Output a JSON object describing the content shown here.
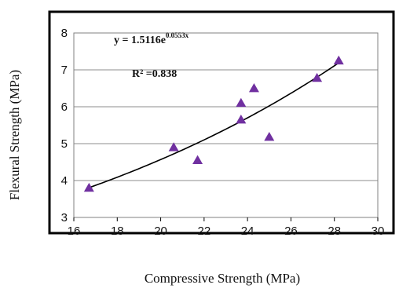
{
  "chart_data": {
    "type": "scatter",
    "xlabel": "Compressive Strength (MPa)",
    "ylabel": "Flexural Strength (MPa)",
    "xlim": [
      16,
      30
    ],
    "ylim": [
      3,
      8
    ],
    "xticks": [
      16,
      18,
      20,
      22,
      24,
      26,
      28,
      30
    ],
    "yticks": [
      3,
      4,
      5,
      6,
      7,
      8
    ],
    "grid": "horizontal",
    "series": [
      {
        "marker": "triangle",
        "color": "#7030A0",
        "points": [
          {
            "x": 16.7,
            "y": 3.8
          },
          {
            "x": 20.6,
            "y": 4.9
          },
          {
            "x": 21.7,
            "y": 4.55
          },
          {
            "x": 23.7,
            "y": 6.1
          },
          {
            "x": 23.7,
            "y": 5.65
          },
          {
            "x": 24.3,
            "y": 6.5
          },
          {
            "x": 25.0,
            "y": 5.18
          },
          {
            "x": 27.2,
            "y": 6.78
          },
          {
            "x": 28.2,
            "y": 7.25
          }
        ]
      }
    ],
    "trendline": {
      "type": "exponential",
      "a": 1.5116,
      "b": 0.0553,
      "x_range": [
        16.7,
        28.2
      ],
      "color": "#000000"
    },
    "annotations": {
      "equation_main": "y = 1.5116e",
      "equation_exp": "0.0553x",
      "r2": "R² =0.838"
    }
  }
}
